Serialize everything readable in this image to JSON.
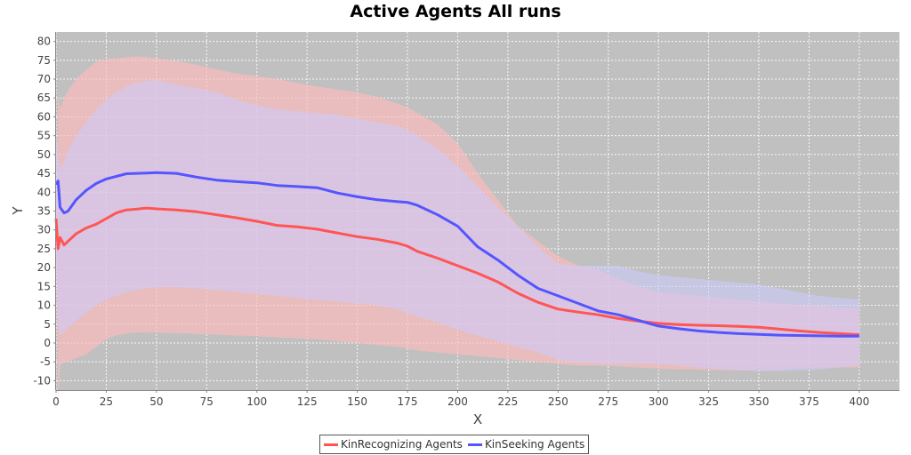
{
  "chart_data": {
    "type": "line",
    "title": "Active Agents All runs",
    "xlabel": "X",
    "ylabel": "Y",
    "xlim": [
      0,
      420
    ],
    "ylim": [
      -12.5,
      82.5
    ],
    "xticks": [
      0,
      25,
      50,
      75,
      100,
      125,
      150,
      175,
      200,
      225,
      250,
      275,
      300,
      325,
      350,
      375,
      400
    ],
    "yticks": [
      -10,
      -5,
      0,
      5,
      10,
      15,
      20,
      25,
      30,
      35,
      40,
      45,
      50,
      55,
      60,
      65,
      70,
      75,
      80
    ],
    "grid": true,
    "legend_position": "bottom-center",
    "background_color": "#c0c0c0",
    "series": [
      {
        "name": "KinRecognizing Agents",
        "color": "#ff5555",
        "band_color": "#ffbbbb",
        "x": [
          0,
          1,
          2,
          4,
          6,
          10,
          15,
          20,
          25,
          30,
          35,
          40,
          45,
          50,
          60,
          70,
          80,
          90,
          100,
          110,
          120,
          130,
          140,
          150,
          160,
          170,
          175,
          180,
          190,
          200,
          210,
          220,
          230,
          240,
          250,
          260,
          270,
          280,
          290,
          300,
          310,
          320,
          330,
          340,
          350,
          360,
          370,
          380,
          390,
          400
        ],
        "values": [
          33,
          25,
          28,
          26,
          27,
          29,
          30.5,
          31.5,
          33,
          34.5,
          35.3,
          35.5,
          35.8,
          35.6,
          35.3,
          34.8,
          34,
          33.2,
          32.3,
          31.2,
          30.8,
          30.2,
          29.2,
          28.2,
          27.5,
          26.5,
          25.7,
          24.3,
          22.5,
          20.5,
          18.5,
          16.2,
          13.2,
          10.8,
          9,
          8.2,
          7.5,
          6.5,
          5.8,
          5.2,
          4.9,
          4.7,
          4.6,
          4.4,
          4.2,
          3.7,
          3.2,
          2.8,
          2.5,
          2.2
        ],
        "upper": [
          36,
          66,
          62,
          65,
          67,
          70,
          72.5,
          74.5,
          75.3,
          75.5,
          75.8,
          76,
          75.8,
          75.5,
          74.8,
          73.8,
          72.5,
          71.5,
          70.8,
          70,
          69,
          68,
          67.3,
          66.5,
          65.3,
          63.5,
          62.5,
          61,
          58,
          53,
          45,
          38,
          31,
          27,
          23,
          20.5,
          19.5,
          17,
          15,
          13.5,
          13,
          12.5,
          12,
          11.5,
          11,
          10.5,
          10,
          10,
          9.5,
          9
        ],
        "lower": [
          30,
          -16,
          -6,
          -5,
          -5,
          -4,
          -3,
          -1,
          1,
          2,
          2.5,
          2.8,
          2.8,
          2.7,
          2.6,
          2.4,
          2.2,
          2,
          1.8,
          1.5,
          1.2,
          1,
          0.5,
          0,
          -0.5,
          -1,
          -1.5,
          -2,
          -2.5,
          -3,
          -3.5,
          -4,
          -4.5,
          -5,
          -5.5,
          -6,
          -6,
          -6.2,
          -6.5,
          -6.8,
          -7,
          -7,
          -7.2,
          -7.3,
          -7.2,
          -7,
          -6.8,
          -6.5,
          -6.5,
          -6.5
        ]
      },
      {
        "name": "KinSeeking Agents",
        "color": "#5555ff",
        "band_color": "#ccccff",
        "x": [
          0,
          1,
          2,
          4,
          6,
          10,
          15,
          20,
          25,
          30,
          35,
          40,
          45,
          50,
          60,
          70,
          80,
          90,
          100,
          110,
          120,
          130,
          140,
          150,
          160,
          170,
          175,
          180,
          190,
          200,
          210,
          220,
          230,
          240,
          250,
          260,
          270,
          280,
          290,
          300,
          310,
          320,
          330,
          340,
          350,
          360,
          370,
          380,
          390,
          400
        ],
        "values": [
          42,
          43,
          36,
          34.5,
          35,
          38,
          40.5,
          42.3,
          43.5,
          44.2,
          44.9,
          45,
          45.1,
          45.2,
          45,
          44,
          43.2,
          42.8,
          42.5,
          41.8,
          41.5,
          41.2,
          39.8,
          38.8,
          38,
          37.5,
          37.3,
          36.5,
          34,
          31,
          25.5,
          22,
          18,
          14.5,
          12.5,
          10.5,
          8.5,
          7.5,
          6,
          4.5,
          3.8,
          3.2,
          2.8,
          2.5,
          2.3,
          2.1,
          2,
          1.9,
          1.8,
          1.8
        ],
        "upper": [
          55,
          50,
          46,
          48,
          51,
          55,
          58.5,
          62,
          64.5,
          66.5,
          68,
          69,
          69.5,
          69.8,
          68.5,
          67.5,
          66.5,
          64.5,
          63,
          62,
          61.5,
          61,
          60.5,
          59.5,
          58.5,
          57.5,
          56.5,
          55,
          51.5,
          47,
          41.5,
          36,
          31,
          25.5,
          21,
          20.5,
          20.5,
          20.5,
          19,
          18,
          17.5,
          17,
          16.5,
          16,
          15.5,
          14.5,
          13.5,
          12.5,
          12,
          11.5
        ],
        "lower": [
          20,
          5,
          2,
          3,
          4,
          6,
          8,
          10,
          11.5,
          12.5,
          13.5,
          14,
          14.5,
          14.8,
          14.8,
          14.5,
          14,
          13.5,
          13,
          12.5,
          12,
          11.5,
          11,
          10.5,
          10,
          9,
          8,
          7,
          5.5,
          3.5,
          2,
          0.5,
          -1,
          -2.5,
          -4.5,
          -5,
          -5.5,
          -5.5,
          -5.5,
          -5.5,
          -6,
          -6.5,
          -7,
          -7.2,
          -7.5,
          -7.5,
          -7.2,
          -7,
          -6.5,
          -6
        ]
      }
    ]
  }
}
